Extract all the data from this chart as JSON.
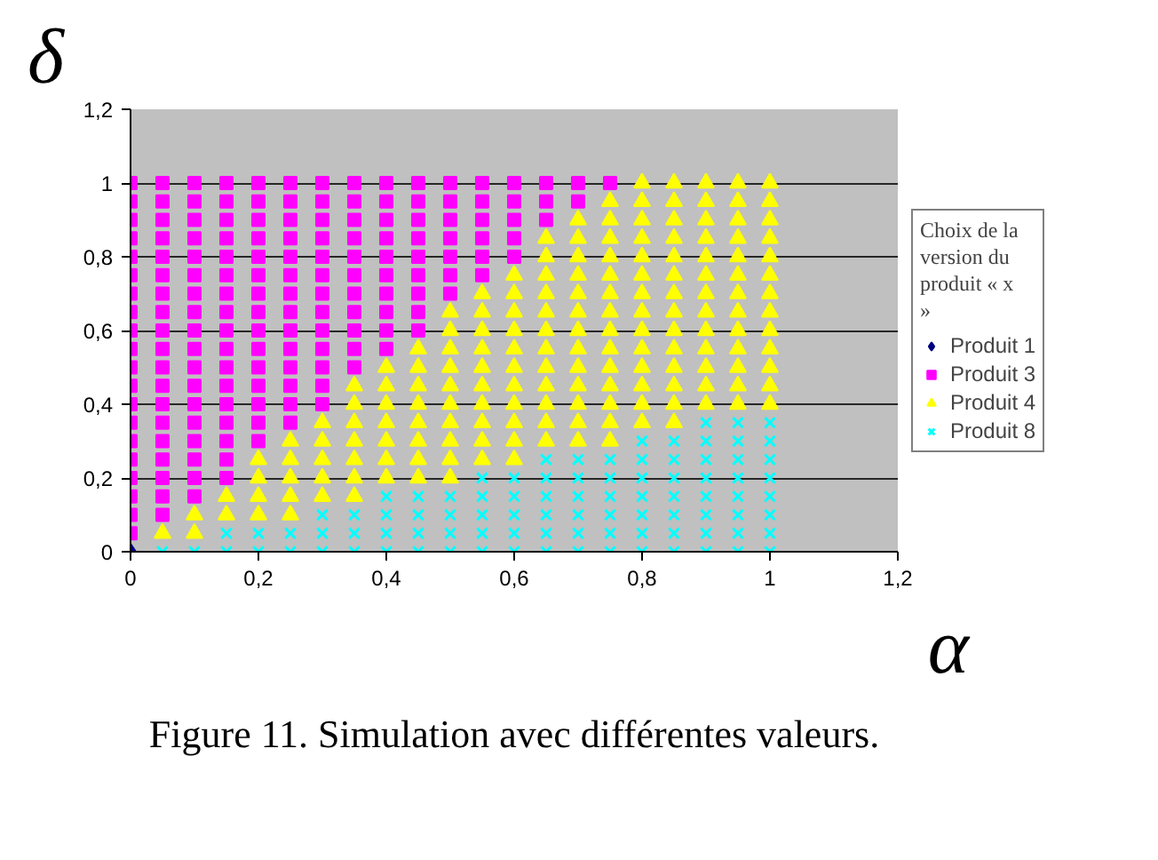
{
  "chart_data": {
    "type": "scatter",
    "xlabel": "α",
    "ylabel": "δ",
    "legend_title": "Choix de la version du produit « x »",
    "annotations": [
      "Figure 11. Simulation avec différentes valeurs."
    ],
    "xlim": [
      0,
      1.2
    ],
    "ylim": [
      0,
      1.2
    ],
    "xticks": [
      0,
      {
        "value": 0.2,
        "label": "0,2"
      },
      {
        "value": 0.4,
        "label": "0,4"
      },
      {
        "value": 0.6,
        "label": "0,6"
      },
      {
        "value": 0.8,
        "label": "0,8"
      },
      1,
      {
        "value": 1.2,
        "label": "1,2"
      }
    ],
    "yticks": [
      0,
      {
        "value": 0.2,
        "label": "0,2"
      },
      {
        "value": 0.4,
        "label": "0,4"
      },
      {
        "value": 0.6,
        "label": "0,6"
      },
      {
        "value": 0.8,
        "label": "0,8"
      },
      1,
      {
        "value": 1.2,
        "label": "1,2"
      }
    ],
    "grid": "y",
    "legend": "right",
    "series": [
      {
        "name": "Produit 1",
        "color": "#000080",
        "marker": "diamond",
        "x": [
          0
        ],
        "values": [
          0
        ]
      },
      {
        "name": "Produit 3",
        "color": "#ff00ff",
        "marker": "square",
        "x": [
          0,
          0,
          0,
          0,
          0,
          0,
          0,
          0,
          0,
          0,
          0,
          0,
          0,
          0,
          0,
          0,
          0,
          0,
          0,
          0,
          0.05,
          0.05,
          0.05,
          0.05,
          0.05,
          0.05,
          0.05,
          0.05,
          0.05,
          0.05,
          0.05,
          0.05,
          0.05,
          0.05,
          0.05,
          0.05,
          0.05,
          0.05,
          0.05,
          0.1,
          0.1,
          0.1,
          0.1,
          0.1,
          0.1,
          0.1,
          0.1,
          0.1,
          0.1,
          0.1,
          0.1,
          0.1,
          0.1,
          0.1,
          0.1,
          0.1,
          0.1,
          0.15,
          0.15,
          0.15,
          0.15,
          0.15,
          0.15,
          0.15,
          0.15,
          0.15,
          0.15,
          0.15,
          0.15,
          0.15,
          0.15,
          0.15,
          0.15,
          0.15,
          0.2,
          0.2,
          0.2,
          0.2,
          0.2,
          0.2,
          0.2,
          0.2,
          0.2,
          0.2,
          0.2,
          0.2,
          0.2,
          0.2,
          0.2,
          0.25,
          0.25,
          0.25,
          0.25,
          0.25,
          0.25,
          0.25,
          0.25,
          0.25,
          0.25,
          0.25,
          0.25,
          0.25,
          0.25,
          0.3,
          0.3,
          0.3,
          0.3,
          0.3,
          0.3,
          0.3,
          0.3,
          0.3,
          0.3,
          0.3,
          0.3,
          0.3,
          0.35,
          0.35,
          0.35,
          0.35,
          0.35,
          0.35,
          0.35,
          0.35,
          0.35,
          0.35,
          0.35,
          0.4,
          0.4,
          0.4,
          0.4,
          0.4,
          0.4,
          0.4,
          0.4,
          0.4,
          0.4,
          0.45,
          0.45,
          0.45,
          0.45,
          0.45,
          0.45,
          0.45,
          0.45,
          0.45,
          0.5,
          0.5,
          0.5,
          0.5,
          0.5,
          0.5,
          0.5,
          0.55,
          0.55,
          0.55,
          0.55,
          0.55,
          0.55,
          0.6,
          0.6,
          0.6,
          0.6,
          0.6,
          0.65,
          0.65,
          0.65,
          0.7,
          0.7,
          0.75
        ],
        "values": [
          0.05,
          0.1,
          0.15,
          0.2,
          0.25,
          0.3,
          0.35,
          0.4,
          0.45,
          0.5,
          0.55,
          0.6,
          0.65,
          0.7,
          0.75,
          0.8,
          0.85,
          0.9,
          0.95,
          1,
          0.1,
          0.15,
          0.2,
          0.25,
          0.3,
          0.35,
          0.4,
          0.45,
          0.5,
          0.55,
          0.6,
          0.65,
          0.7,
          0.75,
          0.8,
          0.85,
          0.9,
          0.95,
          1,
          0.15,
          0.2,
          0.25,
          0.3,
          0.35,
          0.4,
          0.45,
          0.5,
          0.55,
          0.6,
          0.65,
          0.7,
          0.75,
          0.8,
          0.85,
          0.9,
          0.95,
          1,
          0.2,
          0.25,
          0.3,
          0.35,
          0.4,
          0.45,
          0.5,
          0.55,
          0.6,
          0.65,
          0.7,
          0.75,
          0.8,
          0.85,
          0.9,
          0.95,
          1,
          0.3,
          0.35,
          0.4,
          0.45,
          0.5,
          0.55,
          0.6,
          0.65,
          0.7,
          0.75,
          0.8,
          0.85,
          0.9,
          0.95,
          1,
          0.35,
          0.4,
          0.45,
          0.5,
          0.55,
          0.6,
          0.65,
          0.7,
          0.75,
          0.8,
          0.85,
          0.9,
          0.95,
          1,
          0.4,
          0.45,
          0.5,
          0.55,
          0.6,
          0.65,
          0.7,
          0.75,
          0.8,
          0.85,
          0.9,
          0.95,
          1,
          0.5,
          0.55,
          0.6,
          0.65,
          0.7,
          0.75,
          0.8,
          0.85,
          0.9,
          0.95,
          1,
          0.55,
          0.6,
          0.65,
          0.7,
          0.75,
          0.8,
          0.85,
          0.9,
          0.95,
          1,
          0.6,
          0.65,
          0.7,
          0.75,
          0.8,
          0.85,
          0.9,
          0.95,
          1,
          0.7,
          0.75,
          0.8,
          0.85,
          0.9,
          0.95,
          1,
          0.75,
          0.8,
          0.85,
          0.9,
          0.95,
          1,
          0.8,
          0.85,
          0.9,
          0.95,
          1,
          0.9,
          0.95,
          1,
          0.95,
          1,
          1
        ]
      },
      {
        "name": "Produit 4",
        "color": "#ffff00",
        "marker": "triangle",
        "x": [
          0.05,
          0.1,
          0.1,
          0.15,
          0.15,
          0.2,
          0.2,
          0.2,
          0.2,
          0.25,
          0.25,
          0.25,
          0.25,
          0.25,
          0.3,
          0.3,
          0.3,
          0.3,
          0.3,
          0.35,
          0.35,
          0.35,
          0.35,
          0.35,
          0.35,
          0.35,
          0.4,
          0.4,
          0.4,
          0.4,
          0.4,
          0.4,
          0.4,
          0.45,
          0.45,
          0.45,
          0.45,
          0.45,
          0.45,
          0.45,
          0.45,
          0.5,
          0.5,
          0.5,
          0.5,
          0.5,
          0.5,
          0.5,
          0.5,
          0.5,
          0.5,
          0.55,
          0.55,
          0.55,
          0.55,
          0.55,
          0.55,
          0.55,
          0.55,
          0.55,
          0.55,
          0.6,
          0.6,
          0.6,
          0.6,
          0.6,
          0.6,
          0.6,
          0.6,
          0.6,
          0.6,
          0.6,
          0.65,
          0.65,
          0.65,
          0.65,
          0.65,
          0.65,
          0.65,
          0.65,
          0.65,
          0.65,
          0.65,
          0.65,
          0.7,
          0.7,
          0.7,
          0.7,
          0.7,
          0.7,
          0.7,
          0.7,
          0.7,
          0.7,
          0.7,
          0.7,
          0.7,
          0.75,
          0.75,
          0.75,
          0.75,
          0.75,
          0.75,
          0.75,
          0.75,
          0.75,
          0.75,
          0.75,
          0.75,
          0.75,
          0.75,
          0.8,
          0.8,
          0.8,
          0.8,
          0.8,
          0.8,
          0.8,
          0.8,
          0.8,
          0.8,
          0.8,
          0.8,
          0.8,
          0.8,
          0.85,
          0.85,
          0.85,
          0.85,
          0.85,
          0.85,
          0.85,
          0.85,
          0.85,
          0.85,
          0.85,
          0.85,
          0.85,
          0.85,
          0.9,
          0.9,
          0.9,
          0.9,
          0.9,
          0.9,
          0.9,
          0.9,
          0.9,
          0.9,
          0.9,
          0.9,
          0.9,
          0.95,
          0.95,
          0.95,
          0.95,
          0.95,
          0.95,
          0.95,
          0.95,
          0.95,
          0.95,
          0.95,
          0.95,
          0.95,
          1,
          1,
          1,
          1,
          1,
          1,
          1,
          1,
          1,
          1,
          1,
          1,
          1
        ],
        "values": [
          0.05,
          0.05,
          0.1,
          0.1,
          0.15,
          0.1,
          0.15,
          0.2,
          0.25,
          0.1,
          0.15,
          0.2,
          0.25,
          0.3,
          0.15,
          0.2,
          0.25,
          0.3,
          0.35,
          0.15,
          0.2,
          0.25,
          0.3,
          0.35,
          0.4,
          0.45,
          0.2,
          0.25,
          0.3,
          0.35,
          0.4,
          0.45,
          0.5,
          0.2,
          0.25,
          0.3,
          0.35,
          0.4,
          0.45,
          0.5,
          0.55,
          0.2,
          0.25,
          0.3,
          0.35,
          0.4,
          0.45,
          0.5,
          0.55,
          0.6,
          0.65,
          0.25,
          0.3,
          0.35,
          0.4,
          0.45,
          0.5,
          0.55,
          0.6,
          0.65,
          0.7,
          0.25,
          0.3,
          0.35,
          0.4,
          0.45,
          0.5,
          0.55,
          0.6,
          0.65,
          0.7,
          0.75,
          0.3,
          0.35,
          0.4,
          0.45,
          0.5,
          0.55,
          0.6,
          0.65,
          0.7,
          0.75,
          0.8,
          0.85,
          0.3,
          0.35,
          0.4,
          0.45,
          0.5,
          0.55,
          0.6,
          0.65,
          0.7,
          0.75,
          0.8,
          0.85,
          0.9,
          0.3,
          0.35,
          0.4,
          0.45,
          0.5,
          0.55,
          0.6,
          0.65,
          0.7,
          0.75,
          0.8,
          0.85,
          0.9,
          0.95,
          0.35,
          0.4,
          0.45,
          0.5,
          0.55,
          0.6,
          0.65,
          0.7,
          0.75,
          0.8,
          0.85,
          0.9,
          0.95,
          1,
          0.35,
          0.4,
          0.45,
          0.5,
          0.55,
          0.6,
          0.65,
          0.7,
          0.75,
          0.8,
          0.85,
          0.9,
          0.95,
          1,
          0.4,
          0.45,
          0.5,
          0.55,
          0.6,
          0.65,
          0.7,
          0.75,
          0.8,
          0.85,
          0.9,
          0.95,
          1,
          0.4,
          0.45,
          0.5,
          0.55,
          0.6,
          0.65,
          0.7,
          0.75,
          0.8,
          0.85,
          0.9,
          0.95,
          1,
          0.4,
          0.45,
          0.5,
          0.55,
          0.6,
          0.65,
          0.7,
          0.75,
          0.8,
          0.85,
          0.9,
          0.95,
          1
        ]
      },
      {
        "name": "Produit 8",
        "color": "#00ffff",
        "marker": "cross",
        "x": [
          0.05,
          0.1,
          0.15,
          0.15,
          0.2,
          0.2,
          0.25,
          0.25,
          0.3,
          0.3,
          0.3,
          0.35,
          0.35,
          0.35,
          0.4,
          0.4,
          0.4,
          0.4,
          0.45,
          0.45,
          0.45,
          0.45,
          0.5,
          0.5,
          0.5,
          0.5,
          0.55,
          0.55,
          0.55,
          0.55,
          0.55,
          0.6,
          0.6,
          0.6,
          0.6,
          0.6,
          0.65,
          0.65,
          0.65,
          0.65,
          0.65,
          0.65,
          0.7,
          0.7,
          0.7,
          0.7,
          0.7,
          0.7,
          0.75,
          0.75,
          0.75,
          0.75,
          0.75,
          0.75,
          0.8,
          0.8,
          0.8,
          0.8,
          0.8,
          0.8,
          0.8,
          0.85,
          0.85,
          0.85,
          0.85,
          0.85,
          0.85,
          0.85,
          0.9,
          0.9,
          0.9,
          0.9,
          0.9,
          0.9,
          0.9,
          0.9,
          0.95,
          0.95,
          0.95,
          0.95,
          0.95,
          0.95,
          0.95,
          0.95,
          1,
          1,
          1,
          1,
          1,
          1,
          1,
          1
        ],
        "values": [
          0,
          0,
          0,
          0.05,
          0,
          0.05,
          0,
          0.05,
          0,
          0.05,
          0.1,
          0,
          0.05,
          0.1,
          0,
          0.05,
          0.1,
          0.15,
          0,
          0.05,
          0.1,
          0.15,
          0,
          0.05,
          0.1,
          0.15,
          0,
          0.05,
          0.1,
          0.15,
          0.2,
          0,
          0.05,
          0.1,
          0.15,
          0.2,
          0,
          0.05,
          0.1,
          0.15,
          0.2,
          0.25,
          0,
          0.05,
          0.1,
          0.15,
          0.2,
          0.25,
          0,
          0.05,
          0.1,
          0.15,
          0.2,
          0.25,
          0,
          0.05,
          0.1,
          0.15,
          0.2,
          0.25,
          0.3,
          0,
          0.05,
          0.1,
          0.15,
          0.2,
          0.25,
          0.3,
          0,
          0.05,
          0.1,
          0.15,
          0.2,
          0.25,
          0.3,
          0.35,
          0,
          0.05,
          0.1,
          0.15,
          0.2,
          0.25,
          0.3,
          0.35,
          0,
          0.05,
          0.1,
          0.15,
          0.2,
          0.25,
          0.3,
          0.35
        ]
      }
    ]
  }
}
